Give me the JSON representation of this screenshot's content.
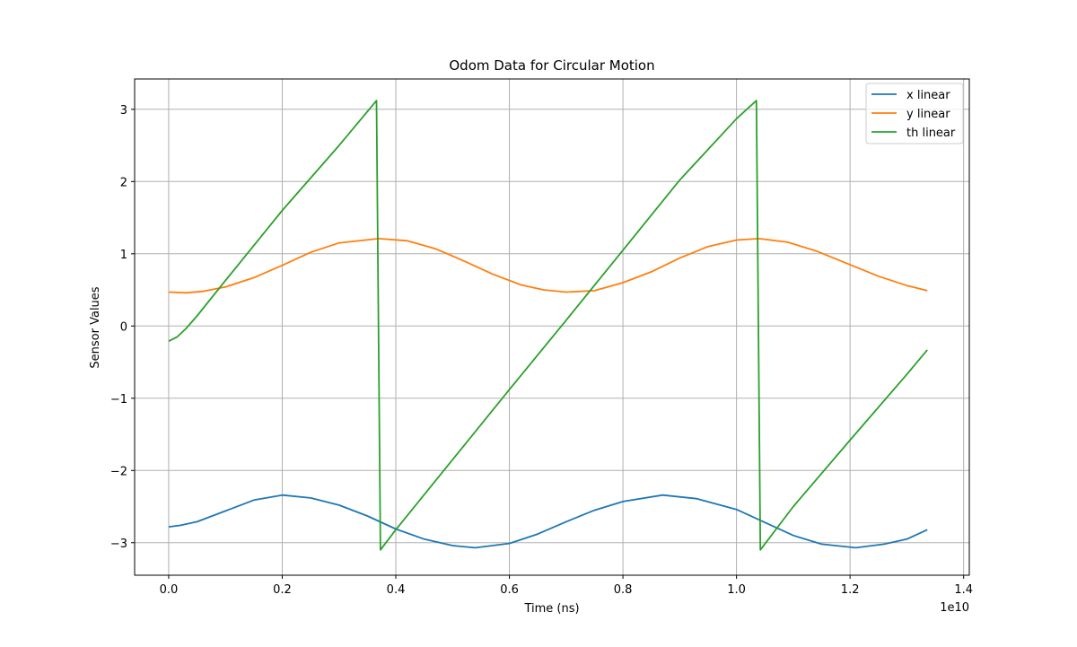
{
  "chart_data": {
    "type": "line",
    "title": "Odom Data for Circular Motion",
    "xlabel": "Time (ns)",
    "ylabel": "Sensor Values",
    "x_offset_label": "1e10",
    "xlim": [
      -0.06,
      1.41
    ],
    "ylim": [
      -3.45,
      3.42
    ],
    "xticks": [
      0.0,
      0.2,
      0.4,
      0.6,
      0.8,
      1.0,
      1.2,
      1.4
    ],
    "xtick_labels": [
      "0.0",
      "0.2",
      "0.4",
      "0.6",
      "0.8",
      "1.0",
      "1.2",
      "1.4"
    ],
    "yticks": [
      -3,
      -2,
      -1,
      0,
      1,
      2,
      3
    ],
    "ytick_labels": [
      "−3",
      "−2",
      "−1",
      "0",
      "1",
      "2",
      "3"
    ],
    "grid": true,
    "legend_position": "upper-right",
    "series": [
      {
        "name": "x linear",
        "color": "#1f77b4",
        "points": [
          [
            0.0,
            -2.78
          ],
          [
            0.02,
            -2.76
          ],
          [
            0.05,
            -2.71
          ],
          [
            0.1,
            -2.56
          ],
          [
            0.15,
            -2.41
          ],
          [
            0.2,
            -2.34
          ],
          [
            0.25,
            -2.38
          ],
          [
            0.3,
            -2.48
          ],
          [
            0.35,
            -2.63
          ],
          [
            0.4,
            -2.81
          ],
          [
            0.45,
            -2.95
          ],
          [
            0.5,
            -3.04
          ],
          [
            0.54,
            -3.07
          ],
          [
            0.6,
            -3.01
          ],
          [
            0.65,
            -2.88
          ],
          [
            0.7,
            -2.71
          ],
          [
            0.75,
            -2.55
          ],
          [
            0.8,
            -2.43
          ],
          [
            0.87,
            -2.34
          ],
          [
            0.93,
            -2.39
          ],
          [
            1.0,
            -2.54
          ],
          [
            1.05,
            -2.72
          ],
          [
            1.1,
            -2.9
          ],
          [
            1.15,
            -3.02
          ],
          [
            1.21,
            -3.07
          ],
          [
            1.26,
            -3.02
          ],
          [
            1.3,
            -2.95
          ],
          [
            1.336,
            -2.82
          ]
        ]
      },
      {
        "name": "y linear",
        "color": "#ff7f0e",
        "points": [
          [
            0.0,
            0.47
          ],
          [
            0.03,
            0.46
          ],
          [
            0.06,
            0.48
          ],
          [
            0.1,
            0.54
          ],
          [
            0.15,
            0.67
          ],
          [
            0.2,
            0.84
          ],
          [
            0.25,
            1.02
          ],
          [
            0.3,
            1.15
          ],
          [
            0.37,
            1.21
          ],
          [
            0.42,
            1.18
          ],
          [
            0.47,
            1.07
          ],
          [
            0.52,
            0.9
          ],
          [
            0.57,
            0.72
          ],
          [
            0.62,
            0.57
          ],
          [
            0.66,
            0.5
          ],
          [
            0.7,
            0.47
          ],
          [
            0.75,
            0.49
          ],
          [
            0.8,
            0.6
          ],
          [
            0.85,
            0.75
          ],
          [
            0.9,
            0.94
          ],
          [
            0.95,
            1.1
          ],
          [
            1.0,
            1.19
          ],
          [
            1.04,
            1.21
          ],
          [
            1.09,
            1.16
          ],
          [
            1.14,
            1.04
          ],
          [
            1.2,
            0.85
          ],
          [
            1.25,
            0.69
          ],
          [
            1.3,
            0.56
          ],
          [
            1.336,
            0.49
          ]
        ]
      },
      {
        "name": "th linear",
        "color": "#2ca02c",
        "points": [
          [
            0.0,
            -0.21
          ],
          [
            0.015,
            -0.15
          ],
          [
            0.03,
            -0.04
          ],
          [
            0.05,
            0.14
          ],
          [
            0.1,
            0.63
          ],
          [
            0.2,
            1.6
          ],
          [
            0.3,
            2.5
          ],
          [
            0.366,
            3.12
          ],
          [
            0.373,
            -3.1
          ],
          [
            0.4,
            -2.82
          ],
          [
            0.5,
            -1.85
          ],
          [
            0.6,
            -0.88
          ],
          [
            0.7,
            0.08
          ],
          [
            0.8,
            1.05
          ],
          [
            0.9,
            2.02
          ],
          [
            1.0,
            2.87
          ],
          [
            1.035,
            3.12
          ],
          [
            1.042,
            -3.1
          ],
          [
            1.1,
            -2.5
          ],
          [
            1.2,
            -1.58
          ],
          [
            1.3,
            -0.67
          ],
          [
            1.336,
            -0.33
          ]
        ]
      }
    ]
  }
}
